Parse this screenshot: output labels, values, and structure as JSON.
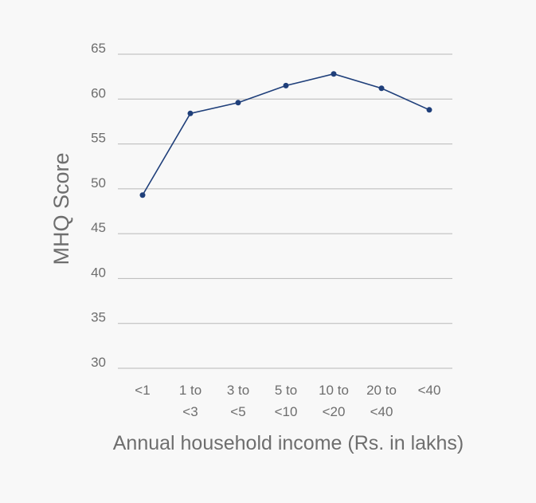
{
  "chart_data": {
    "type": "line",
    "title": "",
    "xlabel": "Annual household income (Rs. in lakhs)",
    "ylabel": "MHQ Score",
    "categories": [
      [
        "<1"
      ],
      [
        "1 to",
        "<3"
      ],
      [
        "3 to",
        "<5"
      ],
      [
        "5 to",
        "<10"
      ],
      [
        "10 to",
        "<20"
      ],
      [
        "20 to",
        "<40"
      ],
      [
        "<40"
      ]
    ],
    "series": [
      {
        "values": [
          49.3,
          58.4,
          59.6,
          61.5,
          62.8,
          61.2,
          58.8
        ]
      }
    ],
    "ylim": [
      30,
      65
    ],
    "yticks": [
      30,
      35,
      40,
      45,
      50,
      55,
      60,
      65
    ],
    "grid": true,
    "legend": "none",
    "colors": {
      "line": "#1f3f7a",
      "grid": "#b8b8b8",
      "text": "#6e6e6e",
      "background": "#f8f8f8"
    }
  }
}
